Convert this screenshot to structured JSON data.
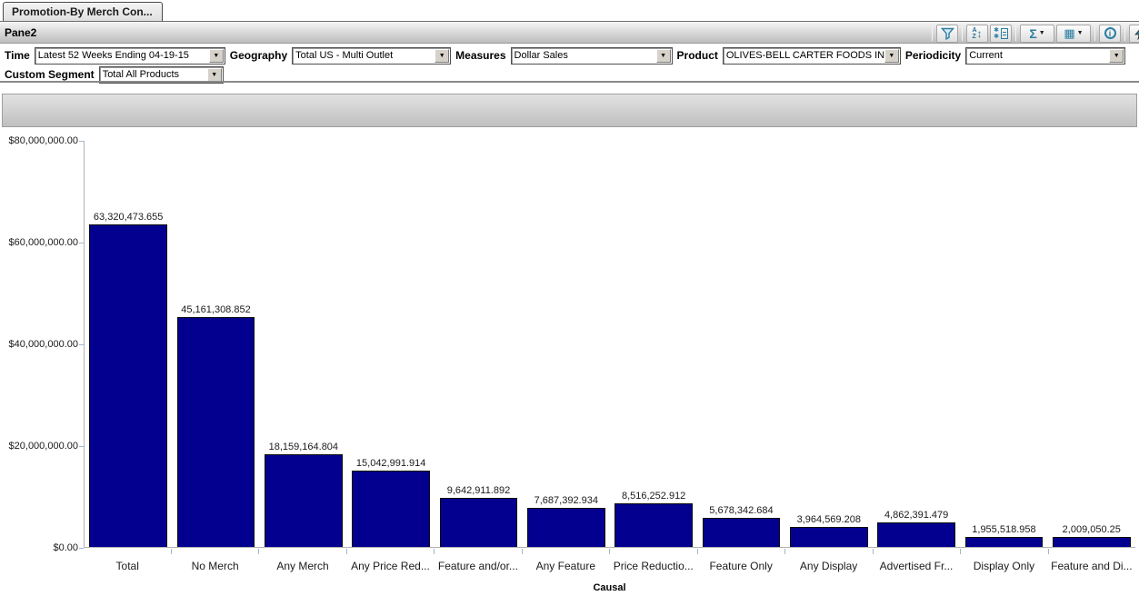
{
  "tab": {
    "label": "Promotion-By Merch Con..."
  },
  "pane": {
    "title": "Pane2"
  },
  "toolbar": {
    "buttons": [
      "filter",
      "sort-az",
      "select-members",
      "aggregate-sigma",
      "table-options",
      "info",
      "more"
    ],
    "glyphs": {
      "sigma": "Σ",
      "caret": "▼",
      "grid": "▦",
      "info": "i",
      "sort_a": "A",
      "sort_z": "Z",
      "sort_arrows": "↕",
      "asterisk": "✱"
    }
  },
  "filters": {
    "row1": [
      {
        "label": "Time",
        "value": "Latest 52 Weeks Ending 04-19-15"
      },
      {
        "label": "Geography",
        "value": "Total US - Multi Outlet"
      },
      {
        "label": "Measures",
        "value": "Dollar Sales"
      },
      {
        "label": "Product",
        "value": "OLIVES-BELL CARTER FOODS INC"
      },
      {
        "label": "Periodicity",
        "value": "Current"
      }
    ],
    "row2": [
      {
        "label": "Custom Segment",
        "value": "Total All Products"
      }
    ]
  },
  "chart_data": {
    "type": "bar",
    "title": "",
    "categories": [
      "Total",
      "No Merch",
      "Any Merch",
      "Any Price Red...",
      "Feature and/or...",
      "Any Feature",
      "Price Reductio...",
      "Feature Only",
      "Any Display",
      "Advertised Fr...",
      "Display Only",
      "Feature and Di..."
    ],
    "values": [
      63320473.655,
      45161308.852,
      18159164.804,
      15042991.914,
      9642911.892,
      7687392.934,
      8516252.912,
      5678342.684,
      3964569.208,
      4862391.479,
      1955518.958,
      2009050.25
    ],
    "value_labels": [
      "63,320,473.655",
      "45,161,308.852",
      "18,159,164.804",
      "15,042,991.914",
      "9,642,911.892",
      "7,687,392.934",
      "8,516,252.912",
      "5,678,342.684",
      "3,964,569.208",
      "4,862,391.479",
      "1,955,518.958",
      "2,009,050.25"
    ],
    "xlabel": "Causal",
    "ylabel": "",
    "ylim": [
      0,
      80000000
    ],
    "ytick_labels": [
      "$0.00",
      "$20,000,000.00",
      "$40,000,000.00",
      "$60,000,000.00",
      "$80,000,000.00"
    ],
    "bar_color": "#04008f",
    "grid": false,
    "legend": false
  }
}
